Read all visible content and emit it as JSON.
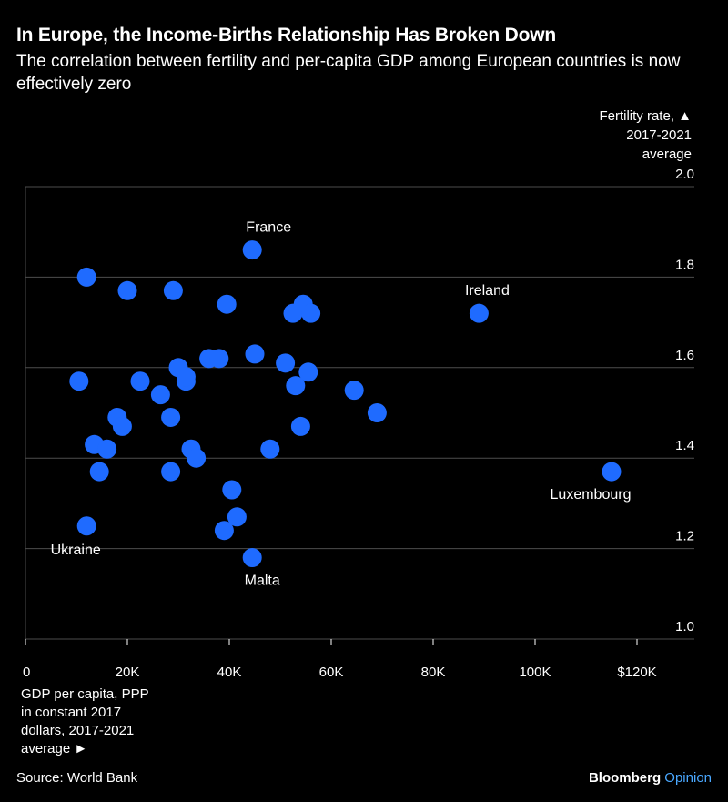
{
  "title": "In Europe, the Income-Births Relationship Has Broken Down",
  "subtitle": "The correlation between fertility and per-capita GDP among European countries is now effectively zero",
  "ylabel_lines": [
    "Fertility rate, ▲",
    "2017-2021",
    "average"
  ],
  "xlabel_lines": [
    "GDP per capita, PPP",
    "in constant 2017",
    "dollars, 2017-2021",
    "average ►"
  ],
  "source": "Source: World Bank",
  "brand": {
    "name": "Bloomberg",
    "suffix": "Opinion"
  },
  "colors": {
    "background": "#000000",
    "point": "#1f6bff",
    "grid": "#4d4d4d",
    "text": "#ffffff",
    "brand_accent": "#4aa8ff"
  },
  "chart_data": {
    "type": "scatter",
    "title": "In Europe, the Income-Births Relationship Has Broken Down",
    "xlabel": "GDP per capita, PPP in constant 2017 dollars, 2017-2021 average",
    "ylabel": "Fertility rate, 2017-2021 average",
    "xlim": [
      0,
      125000
    ],
    "ylim": [
      1.0,
      2.0
    ],
    "x_ticks": [
      0,
      20000,
      40000,
      60000,
      80000,
      100000,
      120000
    ],
    "x_tick_labels": [
      "0",
      "20K",
      "40K",
      "60K",
      "80K",
      "100K",
      "$120K"
    ],
    "y_ticks": [
      1.0,
      1.2,
      1.4,
      1.6,
      1.8,
      2.0
    ],
    "y_tick_labels": [
      "1.0",
      "1.2",
      "1.4",
      "1.6",
      "1.8",
      "2.0"
    ],
    "grid": "horizontal",
    "points": [
      {
        "x": 44500,
        "y": 1.86,
        "label": "France"
      },
      {
        "x": 89000,
        "y": 1.72,
        "label": "Ireland"
      },
      {
        "x": 115000,
        "y": 1.37,
        "label": "Luxembourg"
      },
      {
        "x": 12000,
        "y": 1.25,
        "label": "Ukraine"
      },
      {
        "x": 44500,
        "y": 1.18,
        "label": "Malta"
      },
      {
        "x": 12000,
        "y": 1.8
      },
      {
        "x": 20000,
        "y": 1.77
      },
      {
        "x": 29000,
        "y": 1.77
      },
      {
        "x": 39500,
        "y": 1.74
      },
      {
        "x": 52500,
        "y": 1.72
      },
      {
        "x": 54500,
        "y": 1.74
      },
      {
        "x": 56000,
        "y": 1.72
      },
      {
        "x": 36000,
        "y": 1.62
      },
      {
        "x": 38000,
        "y": 1.62
      },
      {
        "x": 45000,
        "y": 1.63
      },
      {
        "x": 30000,
        "y": 1.6
      },
      {
        "x": 51000,
        "y": 1.61
      },
      {
        "x": 55500,
        "y": 1.59
      },
      {
        "x": 10500,
        "y": 1.57
      },
      {
        "x": 22500,
        "y": 1.57
      },
      {
        "x": 31500,
        "y": 1.57
      },
      {
        "x": 31500,
        "y": 1.58
      },
      {
        "x": 26500,
        "y": 1.54
      },
      {
        "x": 53000,
        "y": 1.56
      },
      {
        "x": 64500,
        "y": 1.55
      },
      {
        "x": 18000,
        "y": 1.49
      },
      {
        "x": 19000,
        "y": 1.47
      },
      {
        "x": 28500,
        "y": 1.49
      },
      {
        "x": 54000,
        "y": 1.47
      },
      {
        "x": 69000,
        "y": 1.5
      },
      {
        "x": 13500,
        "y": 1.43
      },
      {
        "x": 16000,
        "y": 1.42
      },
      {
        "x": 32500,
        "y": 1.42
      },
      {
        "x": 33500,
        "y": 1.4
      },
      {
        "x": 48000,
        "y": 1.42
      },
      {
        "x": 14500,
        "y": 1.37
      },
      {
        "x": 28500,
        "y": 1.37
      },
      {
        "x": 40500,
        "y": 1.33
      },
      {
        "x": 41500,
        "y": 1.27
      },
      {
        "x": 39000,
        "y": 1.24
      }
    ]
  }
}
